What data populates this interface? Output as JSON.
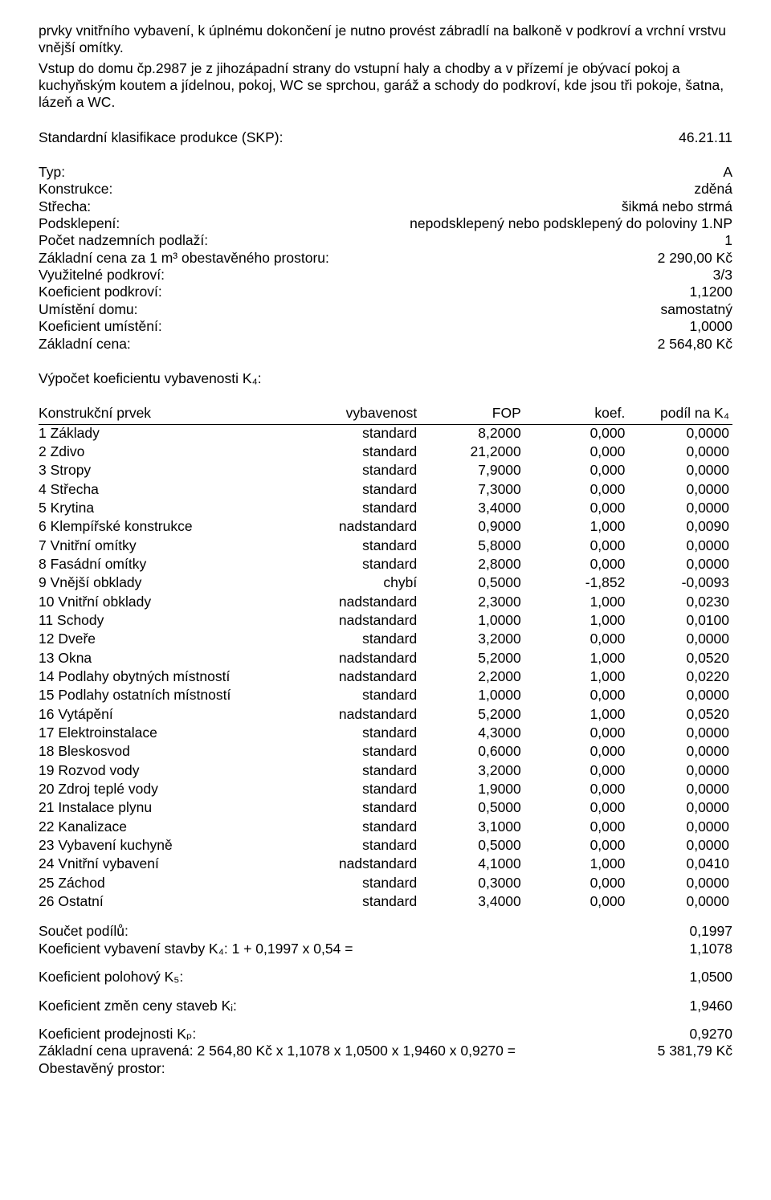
{
  "intro": {
    "p1": "prvky vnitřního vybavení, k úplnému dokončení je nutno provést zábradlí na balkoně v podkroví a vrchní vrstvu vnější omítky.",
    "p2": "Vstup do domu čp.2987 je z jihozápadní strany do vstupní haly a chodby a v přízemí je obývací pokoj a kuchyňským koutem a jídelnou, pokoj, WC se sprchou, garáž a schody do podkroví, kde jsou tři pokoje, šatna, lázeň a WC."
  },
  "skp": {
    "label": "Standardní klasifikace produkce (SKP):",
    "value": "46.21.11"
  },
  "attrs": [
    {
      "label": "Typ:",
      "value": "A"
    },
    {
      "label": "Konstrukce:",
      "value": "zděná"
    },
    {
      "label": "Střecha:",
      "value": "šikmá nebo strmá"
    },
    {
      "label": "Podsklepení:",
      "value": "nepodsklepený nebo podsklepený do poloviny 1.NP"
    },
    {
      "label": "Počet nadzemních podlaží:",
      "value": "1"
    },
    {
      "label": "Základní cena za 1 m³ obestavěného prostoru:",
      "value": "2 290,00 Kč"
    },
    {
      "label": "Využitelné podkroví:",
      "value": "3/3"
    },
    {
      "label": "Koeficient podkroví:",
      "value": "1,1200"
    },
    {
      "label": "Umístění domu:",
      "value": "samostatný"
    },
    {
      "label": "Koeficient umístění:",
      "value": "1,0000"
    },
    {
      "label": "Základní cena:",
      "value": "2 564,80 Kč"
    }
  ],
  "k4_title": "Výpočet koeficientu vybavenosti K₄:",
  "k4_headers": {
    "c1": "Konstrukční prvek",
    "c2": "vybavenost",
    "c3": "FOP",
    "c4": "koef.",
    "c5": "podíl na K₄"
  },
  "k4_rows": [
    {
      "n": "1 Základy",
      "v": "standard",
      "fop": "8,2000",
      "k": "0,000",
      "p": "0,0000"
    },
    {
      "n": "2 Zdivo",
      "v": "standard",
      "fop": "21,2000",
      "k": "0,000",
      "p": "0,0000"
    },
    {
      "n": "3 Stropy",
      "v": "standard",
      "fop": "7,9000",
      "k": "0,000",
      "p": "0,0000"
    },
    {
      "n": "4 Střecha",
      "v": "standard",
      "fop": "7,3000",
      "k": "0,000",
      "p": "0,0000"
    },
    {
      "n": "5 Krytina",
      "v": "standard",
      "fop": "3,4000",
      "k": "0,000",
      "p": "0,0000"
    },
    {
      "n": "6 Klempířské konstrukce",
      "v": "nadstandard",
      "fop": "0,9000",
      "k": "1,000",
      "p": "0,0090"
    },
    {
      "n": "7 Vnitřní omítky",
      "v": "standard",
      "fop": "5,8000",
      "k": "0,000",
      "p": "0,0000"
    },
    {
      "n": "8 Fasádní omítky",
      "v": "standard",
      "fop": "2,8000",
      "k": "0,000",
      "p": "0,0000"
    },
    {
      "n": "9 Vnější obklady",
      "v": "chybí",
      "fop": "0,5000",
      "k": "-1,852",
      "p": "-0,0093"
    },
    {
      "n": "10 Vnitřní obklady",
      "v": "nadstandard",
      "fop": "2,3000",
      "k": "1,000",
      "p": "0,0230"
    },
    {
      "n": "11 Schody",
      "v": "nadstandard",
      "fop": "1,0000",
      "k": "1,000",
      "p": "0,0100"
    },
    {
      "n": "12 Dveře",
      "v": "standard",
      "fop": "3,2000",
      "k": "0,000",
      "p": "0,0000"
    },
    {
      "n": "13 Okna",
      "v": "nadstandard",
      "fop": "5,2000",
      "k": "1,000",
      "p": "0,0520"
    },
    {
      "n": "14 Podlahy obytných místností",
      "v": "nadstandard",
      "fop": "2,2000",
      "k": "1,000",
      "p": "0,0220"
    },
    {
      "n": "15 Podlahy ostatních místností",
      "v": "standard",
      "fop": "1,0000",
      "k": "0,000",
      "p": "0,0000"
    },
    {
      "n": "16 Vytápění",
      "v": "nadstandard",
      "fop": "5,2000",
      "k": "1,000",
      "p": "0,0520"
    },
    {
      "n": "17 Elektroinstalace",
      "v": "standard",
      "fop": "4,3000",
      "k": "0,000",
      "p": "0,0000"
    },
    {
      "n": "18 Bleskosvod",
      "v": "standard",
      "fop": "0,6000",
      "k": "0,000",
      "p": "0,0000"
    },
    {
      "n": "19 Rozvod vody",
      "v": "standard",
      "fop": "3,2000",
      "k": "0,000",
      "p": "0,0000"
    },
    {
      "n": "20 Zdroj teplé vody",
      "v": "standard",
      "fop": "1,9000",
      "k": "0,000",
      "p": "0,0000"
    },
    {
      "n": "21 Instalace plynu",
      "v": "standard",
      "fop": "0,5000",
      "k": "0,000",
      "p": "0,0000"
    },
    {
      "n": "22 Kanalizace",
      "v": "standard",
      "fop": "3,1000",
      "k": "0,000",
      "p": "0,0000"
    },
    {
      "n": "23 Vybavení kuchyně",
      "v": "standard",
      "fop": "0,5000",
      "k": "0,000",
      "p": "0,0000"
    },
    {
      "n": "24 Vnitřní vybavení",
      "v": "nadstandard",
      "fop": "4,1000",
      "k": "1,000",
      "p": "0,0410"
    },
    {
      "n": "25 Záchod",
      "v": "standard",
      "fop": "0,3000",
      "k": "0,000",
      "p": "0,0000"
    },
    {
      "n": "26 Ostatní",
      "v": "standard",
      "fop": "3,4000",
      "k": "0,000",
      "p": "0,0000"
    }
  ],
  "totals": [
    {
      "label": "Součet podílů:",
      "value": "0,1997"
    },
    {
      "label": "Koeficient vybavení stavby K₄: 1 + 0,1997 x 0,54 =",
      "value": "1,1078"
    }
  ],
  "coeffs": [
    {
      "label": "Koeficient polohový K₅:",
      "value": "1,0500"
    },
    {
      "label": "Koeficient změn ceny staveb Kᵢ:",
      "value": "1,9460"
    },
    {
      "label": "Koeficient prodejnosti Kₚ:",
      "value": "0,9270"
    }
  ],
  "final": {
    "label": "Základní cena upravená: 2 564,80 Kč x 1,1078 x 1,0500 x 1,9460 x 0,9270 =",
    "value": "5 381,79 Kč"
  },
  "obe": "Obestavěný prostor:"
}
